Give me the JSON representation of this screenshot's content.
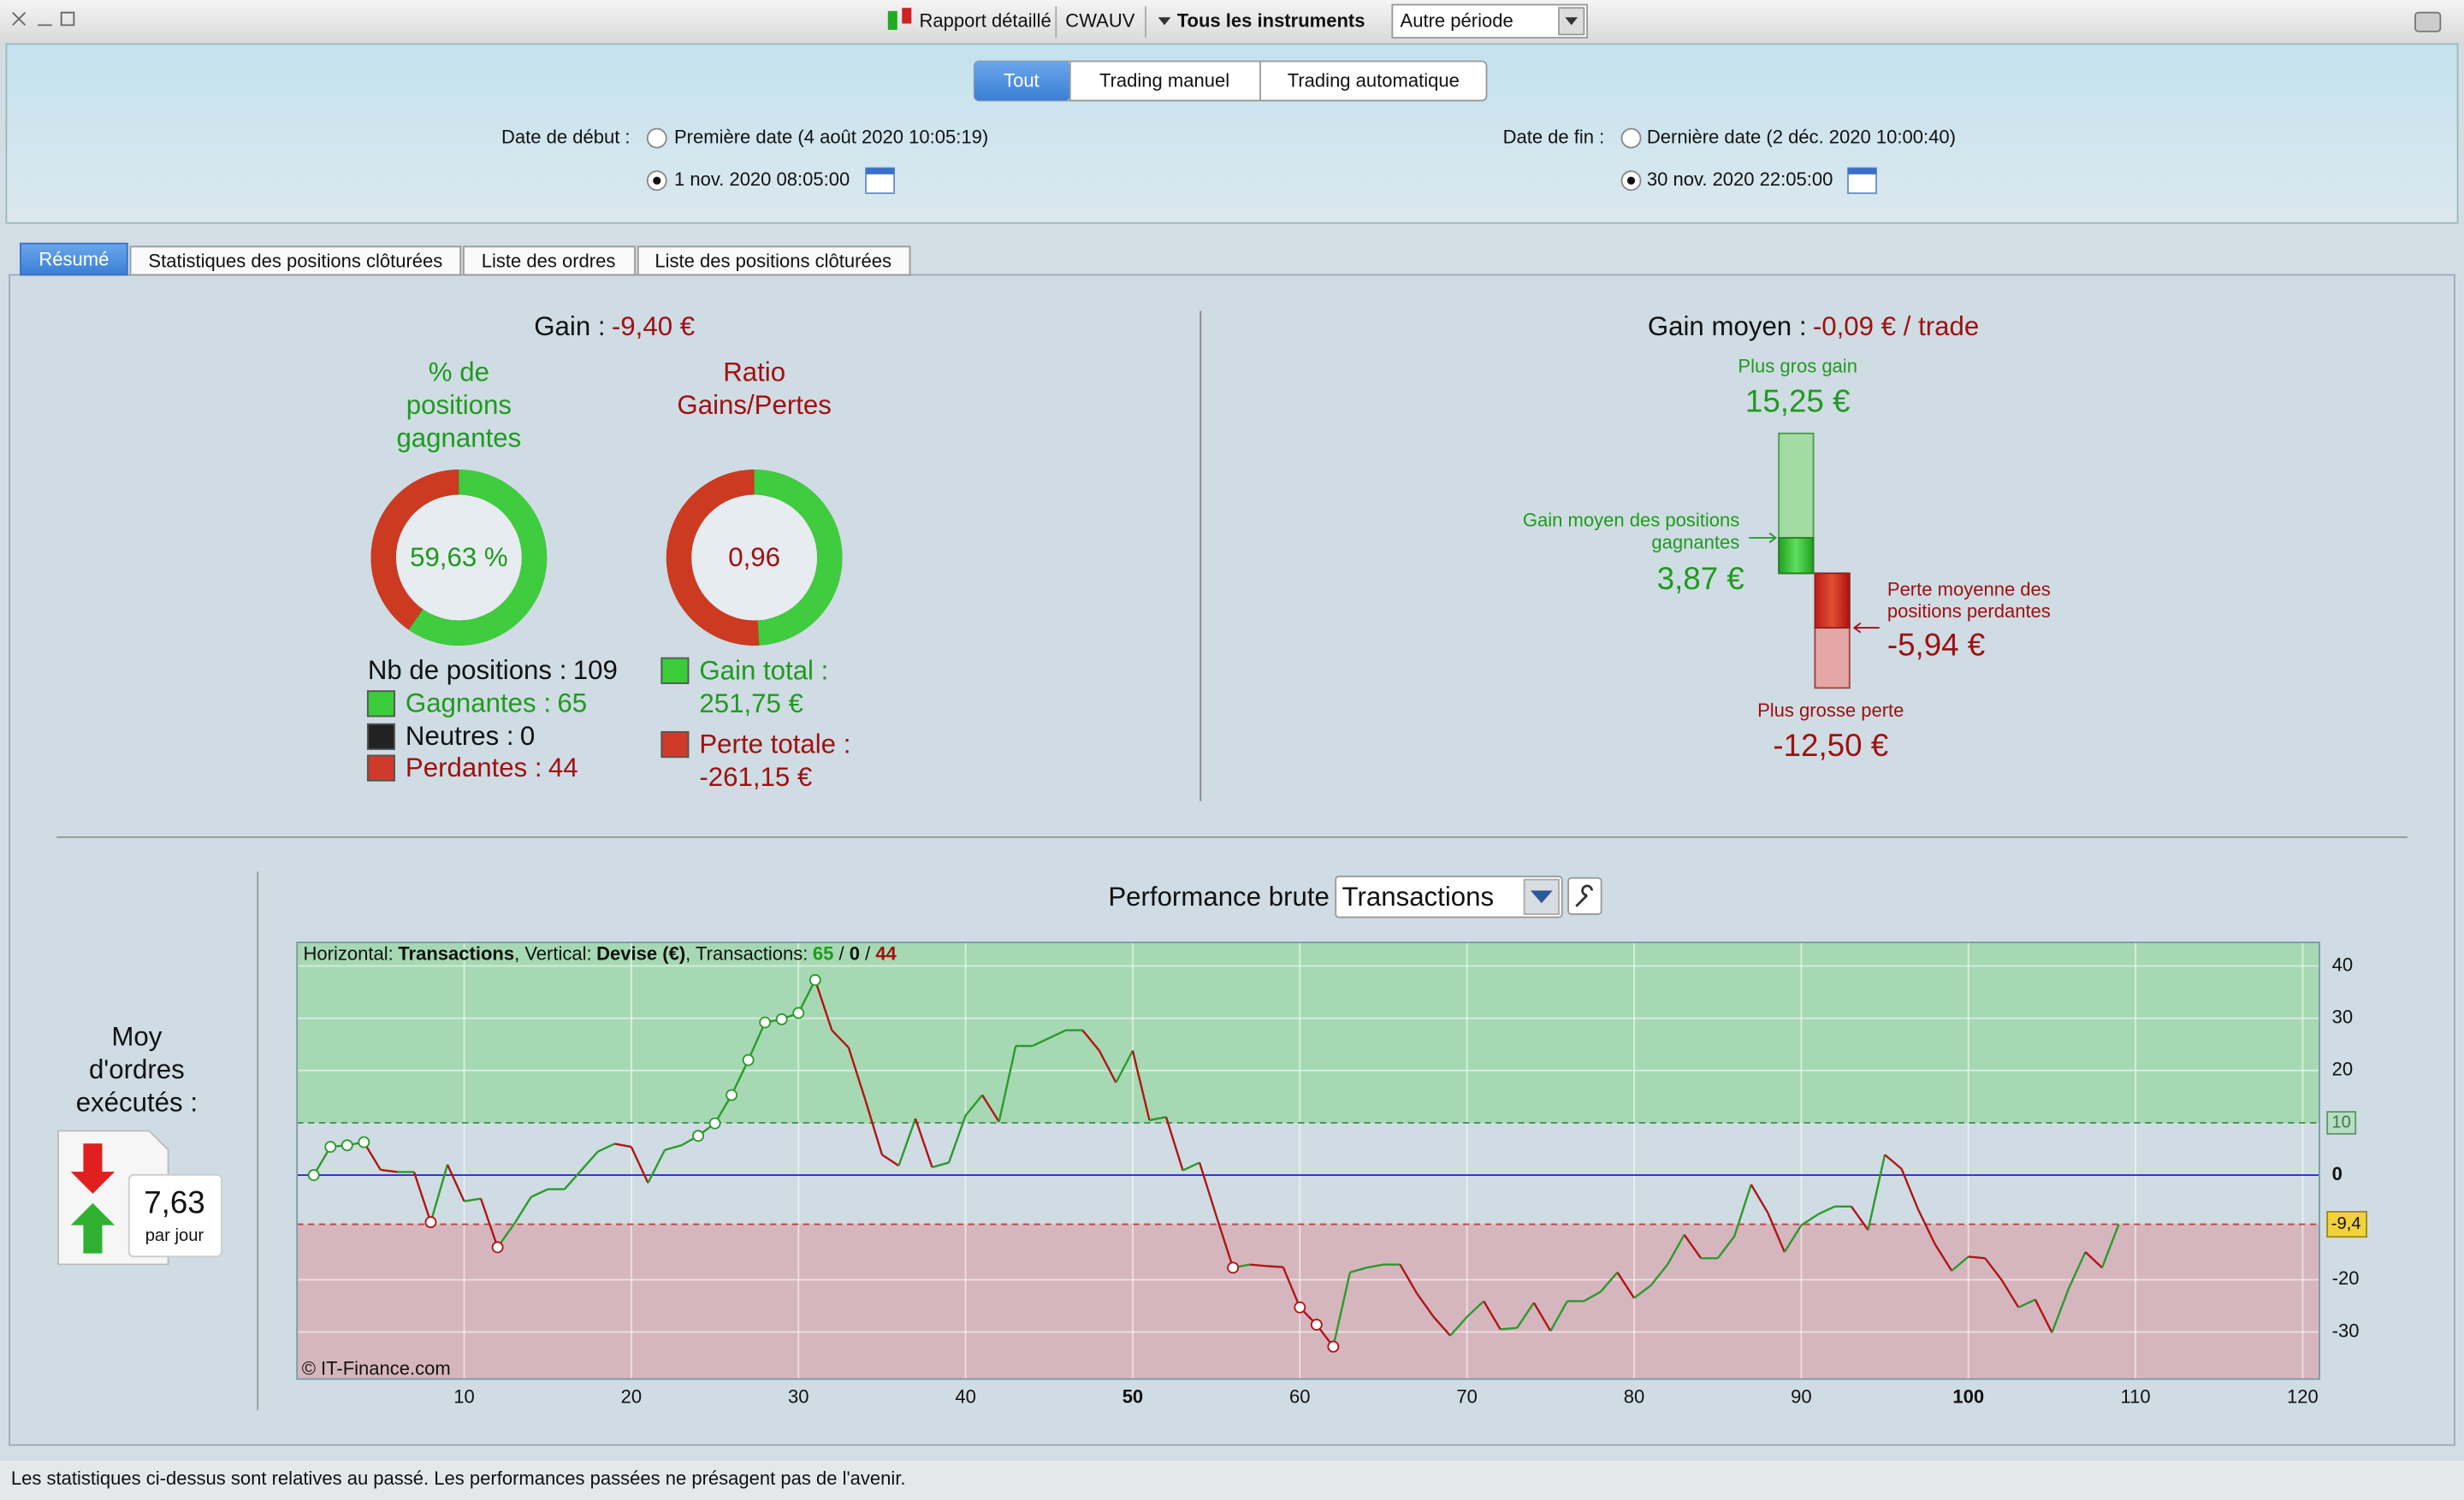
{
  "toolbar": {
    "report": "Rapport détaillé",
    "instrument": "CWAUV",
    "instruments_menu": "Tous les instruments",
    "period": "Autre période"
  },
  "filter_tabs": [
    "Tout",
    "Trading manuel",
    "Trading automatique"
  ],
  "dates": {
    "start_label": "Date de début :",
    "start_first": "Première date (4 août 2020 10:05:19)",
    "start_custom": "1 nov. 2020 08:05:00",
    "end_label": "Date de fin :",
    "end_last": "Dernière date (2 déc. 2020 10:00:40)",
    "end_custom": "30 nov. 2020 22:05:00"
  },
  "tabs": [
    "Résumé",
    "Statistiques des positions clôturées",
    "Liste des ordres",
    "Liste des positions clôturées"
  ],
  "summary": {
    "gain_label": "Gain :",
    "gain": "-9,40 €",
    "win_title": [
      "% de",
      "positions",
      "gagnantes"
    ],
    "win_pct": "59,63 %",
    "ratio_title": [
      "Ratio",
      "Gains/Pertes"
    ],
    "ratio": "0,96",
    "positions_label": "Nb de positions :",
    "positions": 109,
    "winners_label": "Gagnantes :",
    "winners": 65,
    "neutral_label": "Neutres :",
    "neutral": 0,
    "losers_label": "Perdantes :",
    "losers": 44,
    "gain_total_label": "Gain total :",
    "gain_total": {
      "value": 251.75,
      "label": "251,75 €"
    },
    "loss_total_label": "Perte totale :",
    "loss_total": {
      "value": -261.15,
      "label": "-261,15 €"
    }
  },
  "average": {
    "label": "Gain moyen :",
    "value": "-0,09 € / trade",
    "best_label": "Plus gros gain",
    "best": {
      "value": 15.25,
      "label": "15,25 €"
    },
    "avg_win_label": [
      "Gain moyen des positions",
      "gagnantes"
    ],
    "avg_win": {
      "value": 3.87,
      "label": "3,87 €"
    },
    "avg_loss_label": [
      "Perte moyenne des",
      "positions perdantes"
    ],
    "avg_loss": {
      "value": -5.94,
      "label": "-5,94 €"
    },
    "worst_label": "Plus grosse perte",
    "worst": {
      "value": -12.5,
      "label": "-12,50 €"
    }
  },
  "orders": {
    "label": [
      "Moy",
      "d'ordres",
      "exécutés :"
    ],
    "value": "7,63",
    "unit": "par jour"
  },
  "chart_data": {
    "type": "line",
    "title": "Performance brute",
    "selector": "Transactions",
    "info": {
      "h_label": "Horizontal:",
      "h_value": "Transactions",
      "v_label": ", Vertical:",
      "v_value": "Devise (€)",
      "t_label": ", Transactions:",
      "separator": " / "
    },
    "x": [
      1,
      2,
      3,
      4,
      5,
      6,
      7,
      8,
      9,
      10,
      11,
      12,
      13,
      14,
      15,
      16,
      17,
      18,
      19,
      20,
      21,
      22,
      23,
      24,
      25,
      26,
      27,
      28,
      29,
      30,
      31,
      32,
      33,
      34,
      35,
      36,
      37,
      38,
      39,
      40,
      41,
      42,
      43,
      44,
      45,
      46,
      47,
      48,
      49,
      50,
      51,
      52,
      53,
      54,
      55,
      56,
      57,
      58,
      59,
      60,
      61,
      62,
      63,
      64,
      65,
      66,
      67,
      68,
      69,
      70,
      71,
      72,
      73,
      74,
      75,
      76,
      77,
      78,
      79,
      80,
      81,
      82,
      83,
      84,
      85,
      86,
      87,
      88,
      89,
      90,
      91,
      92,
      93,
      94,
      95,
      96,
      97,
      98,
      99,
      100,
      101,
      102,
      103,
      104,
      105,
      106,
      107,
      108,
      109
    ],
    "values": [
      0,
      5.4,
      5.7,
      6.3,
      1,
      0.6,
      0.6,
      -9,
      2,
      -5,
      -4.5,
      -13.8,
      -9.3,
      -4.2,
      -2.7,
      -2.7,
      0.9,
      4.5,
      6,
      5.4,
      -1.5,
      4.8,
      5.7,
      7.5,
      9.9,
      15.3,
      22,
      29.2,
      29.8,
      31,
      37.3,
      27.7,
      24.4,
      14.4,
      3.9,
      1.8,
      10.8,
      1.5,
      2.4,
      11.4,
      15.3,
      10.2,
      24.7,
      24.7,
      26.2,
      27.7,
      27.7,
      23.8,
      17.7,
      23.8,
      10.5,
      11.1,
      0.9,
      2.4,
      -7.8,
      -17.7,
      -17.1,
      -17.4,
      -17.6,
      -25.3,
      -28.6,
      -32.8,
      -18.6,
      -17.7,
      -17.1,
      -17.1,
      -22.6,
      -27.1,
      -30.7,
      -27.1,
      -24.1,
      -29.5,
      -29.2,
      -24.4,
      -29.8,
      -24.1,
      -24.1,
      -22.3,
      -18.6,
      -23.5,
      -21.1,
      -17.1,
      -11.4,
      -15.9,
      -15.9,
      -11.7,
      -1.8,
      -7.2,
      -14.7,
      -9.6,
      -7.5,
      -6,
      -6,
      -10.5,
      3.9,
      1.2,
      -6.6,
      -13.2,
      -18.3,
      -15.6,
      -15.9,
      -20.1,
      -25.3,
      -23.8,
      -30.1,
      -21.7,
      -14.7,
      -17.7,
      -9.4
    ],
    "xlim": [
      0,
      121
    ],
    "xticks": [
      10,
      20,
      30,
      40,
      50,
      60,
      70,
      80,
      90,
      100,
      110,
      120
    ],
    "ylim": [
      -39,
      44.5
    ],
    "yticks": [
      -30,
      -20,
      0,
      20,
      30,
      40
    ],
    "target": {
      "value": 10,
      "label": "10"
    },
    "final": {
      "value": -9.4,
      "label": "-9,4"
    },
    "colors": {
      "up": "#2b9a2b",
      "down": "#b01515"
    },
    "grid": true,
    "copyright": "© IT-Finance.com"
  },
  "footer": "Les statistiques ci-dessus sont relatives au passé. Les performances passées ne présagent pas de l'avenir."
}
